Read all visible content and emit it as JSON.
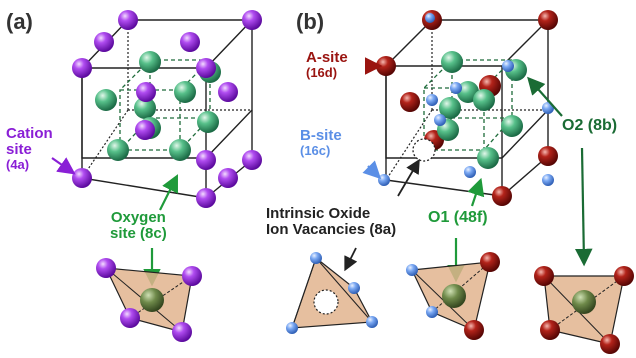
{
  "panel_a": {
    "label": "(a)",
    "cation_line1": "Cation",
    "cation_line2": "site",
    "cation_wyckoff": "(4a)",
    "oxygen_line1": "Oxygen",
    "oxygen_line2": "site (8c)"
  },
  "panel_b": {
    "label": "(b)",
    "a_site": "A-site",
    "a_wyckoff": "(16d)",
    "b_site": "B-site",
    "b_wyckoff": "(16c)",
    "vacancy_line1": "Intrinsic Oxide",
    "vacancy_line2": "Ion Vacancies (8a)",
    "o1_label": "O1 (48f)",
    "o2_label": "O2 (8b)"
  },
  "colors": {
    "purple_atom": "#8a1fd6",
    "green_atom": "#3aa86b",
    "red_atom": "#9a1410",
    "blue_atom": "#5b8fe6",
    "tetra_fill": "#e2b48e",
    "cube_edge": "#222222",
    "inner_dash": "#1e6b3a"
  }
}
